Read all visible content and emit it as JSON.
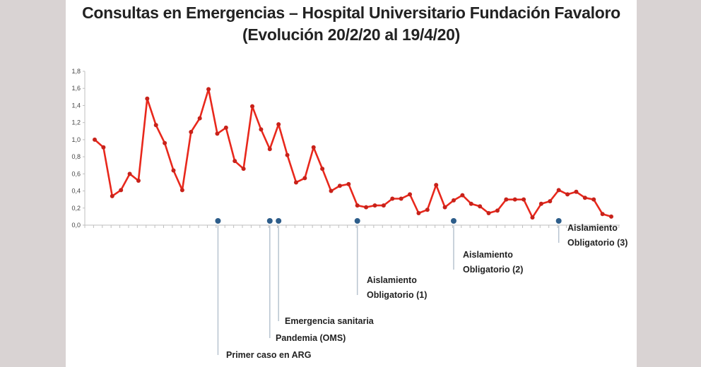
{
  "title_line1": "Consultas en Emergencias – Hospital Universitario Fundación Favaloro",
  "title_line2": "(Evolución 20/2/20 al 19/4/20)",
  "colors": {
    "background": "#d9d3d3",
    "panel": "#ffffff",
    "line": "#e8281c",
    "marker_line": "#c8221a",
    "event_marker": "#2d5d8a",
    "event_line": "#b8c4d0",
    "axis": "#bfbfbf"
  },
  "chart_data": {
    "type": "line",
    "title": "Consultas en Emergencias – Hospital Universitario Fundación Favaloro (Evolución 20/2/20 al 19/4/20)",
    "xlabel": "",
    "ylabel": "",
    "ylim": [
      0,
      1.8
    ],
    "yticks": [
      "0,0",
      "0,2",
      "0,4",
      "0,6",
      "0,8",
      "1,0",
      "1,2",
      "1,4",
      "1,6",
      "1,8"
    ],
    "grid": false,
    "legend": null,
    "series": [
      {
        "name": "Consultas",
        "values": [
          1.0,
          0.91,
          0.34,
          0.41,
          0.6,
          0.52,
          1.48,
          1.17,
          0.96,
          0.64,
          0.41,
          1.09,
          1.25,
          1.59,
          1.07,
          1.14,
          0.75,
          0.66,
          1.39,
          1.12,
          0.89,
          1.18,
          0.82,
          0.5,
          0.55,
          0.91,
          0.66,
          0.4,
          0.46,
          0.48,
          0.23,
          0.21,
          0.23,
          0.23,
          0.31,
          0.31,
          0.36,
          0.14,
          0.18,
          0.47,
          0.21,
          0.29,
          0.35,
          0.25,
          0.22,
          0.14,
          0.17,
          0.3,
          0.3,
          0.3,
          0.09,
          0.25,
          0.28,
          0.41,
          0.36,
          0.39,
          0.32,
          0.3,
          0.13,
          0.1
        ]
      }
    ],
    "annotations": [
      {
        "label_lines": [
          "Primer caso en ARG"
        ],
        "index": 14
      },
      {
        "label_lines": [
          "Pandemia (OMS)"
        ],
        "index": 20
      },
      {
        "label_lines": [
          "Emergencia sanitaria"
        ],
        "index": 21
      },
      {
        "label_lines": [
          "Aislamiento",
          "Obligatorio (1)"
        ],
        "index": 30
      },
      {
        "label_lines": [
          "Aislamiento",
          "Obligatorio (2)"
        ],
        "index": 41
      },
      {
        "label_lines": [
          "Aislamiento",
          "Obligatorio (3)"
        ],
        "index": 53
      }
    ]
  }
}
